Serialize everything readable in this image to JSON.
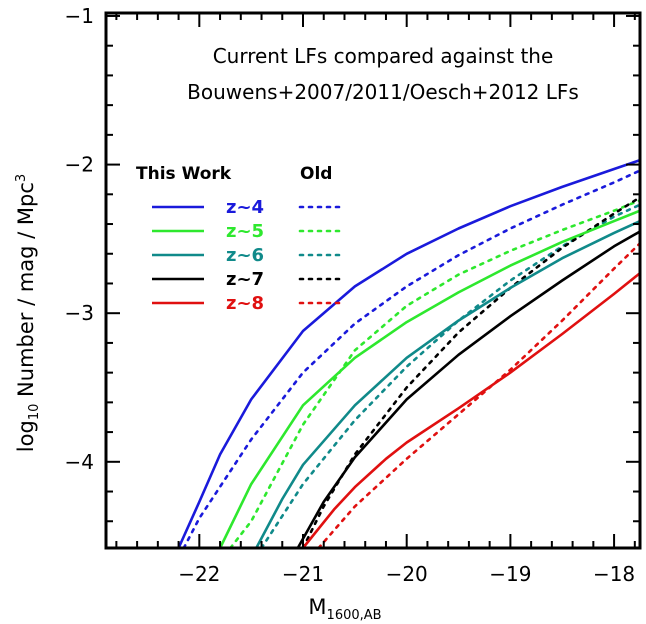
{
  "chart_data": {
    "type": "line",
    "title_lines": [
      "Current LFs compared against the",
      "Bouwens+2007/2011/Oesch+2012 LFs"
    ],
    "xlabel_main": "M",
    "xlabel_sub": "1600,AB",
    "ylabel_pre": "log",
    "ylabel_sub": "10",
    "ylabel_main": " Number / mag / Mpc",
    "ylabel_sup": "3",
    "xlim": [
      -22.9,
      -17.75
    ],
    "ylim": [
      -4.58,
      -0.98
    ],
    "x_ticks": [
      -22,
      -21,
      -20,
      -19,
      -18
    ],
    "x_tick_labels": [
      "−22",
      "−21",
      "−20",
      "−19",
      "−18"
    ],
    "y_ticks": [
      -4,
      -3,
      -2,
      -1
    ],
    "y_tick_labels": [
      "−4",
      "−3",
      "−2",
      "−1"
    ],
    "legend": {
      "header_this": "This Work",
      "header_old": "Old",
      "placement": "upper-left"
    },
    "series": [
      {
        "name": "z~4",
        "color": "#1a1adb",
        "style": "solid",
        "x": [
          -22.2,
          -22.0,
          -21.8,
          -21.5,
          -21.0,
          -20.5,
          -20.0,
          -19.5,
          -19.0,
          -18.5,
          -18.0,
          -17.75
        ],
        "y": [
          -4.58,
          -4.27,
          -3.95,
          -3.58,
          -3.12,
          -2.82,
          -2.6,
          -2.43,
          -2.28,
          -2.15,
          -2.03,
          -1.97
        ]
      },
      {
        "name": "z~5",
        "color": "#2ee82e",
        "style": "solid",
        "x": [
          -21.8,
          -21.5,
          -21.0,
          -20.5,
          -20.0,
          -19.5,
          -19.0,
          -18.5,
          -18.0,
          -17.75
        ],
        "y": [
          -4.58,
          -4.15,
          -3.62,
          -3.3,
          -3.06,
          -2.86,
          -2.68,
          -2.52,
          -2.38,
          -2.31
        ]
      },
      {
        "name": "z~6",
        "color": "#108a8a",
        "style": "solid",
        "x": [
          -21.45,
          -21.2,
          -21.0,
          -20.5,
          -20.0,
          -19.5,
          -19.0,
          -18.5,
          -18.0,
          -17.75
        ],
        "y": [
          -4.58,
          -4.25,
          -4.02,
          -3.62,
          -3.3,
          -3.05,
          -2.83,
          -2.63,
          -2.46,
          -2.38
        ]
      },
      {
        "name": "z~7",
        "color": "#000000",
        "style": "solid",
        "x": [
          -21.05,
          -20.8,
          -20.5,
          -20.0,
          -19.5,
          -19.0,
          -18.5,
          -18.0,
          -17.75
        ],
        "y": [
          -4.58,
          -4.27,
          -3.97,
          -3.58,
          -3.28,
          -3.02,
          -2.78,
          -2.55,
          -2.45
        ]
      },
      {
        "name": "z~8",
        "color": "#e01010",
        "style": "solid",
        "x": [
          -21.0,
          -20.7,
          -20.5,
          -20.2,
          -20.0,
          -19.5,
          -19.0,
          -18.5,
          -18.0,
          -17.75
        ],
        "y": [
          -4.58,
          -4.32,
          -4.17,
          -3.98,
          -3.87,
          -3.64,
          -3.4,
          -3.14,
          -2.87,
          -2.73
        ]
      }
    ],
    "series_old": [
      {
        "name": "z~4",
        "color": "#1a1adb",
        "style": "dotted",
        "x": [
          -22.15,
          -22.0,
          -21.5,
          -21.0,
          -20.5,
          -20.0,
          -19.5,
          -19.0,
          -18.5,
          -18.0,
          -17.75
        ],
        "y": [
          -4.58,
          -4.38,
          -3.85,
          -3.4,
          -3.07,
          -2.82,
          -2.61,
          -2.43,
          -2.27,
          -2.12,
          -2.04
        ]
      },
      {
        "name": "z~5",
        "color": "#2ee82e",
        "style": "dotted",
        "x": [
          -21.7,
          -21.5,
          -21.0,
          -20.5,
          -20.0,
          -19.5,
          -19.0,
          -18.5,
          -18.0,
          -17.75
        ],
        "y": [
          -4.58,
          -4.4,
          -3.75,
          -3.25,
          -2.95,
          -2.74,
          -2.58,
          -2.44,
          -2.31,
          -2.24
        ]
      },
      {
        "name": "z~6",
        "color": "#108a8a",
        "style": "dotted",
        "x": [
          -21.4,
          -21.0,
          -20.5,
          -20.0,
          -19.5,
          -19.0,
          -18.5,
          -18.0,
          -17.75
        ],
        "y": [
          -4.58,
          -4.15,
          -3.72,
          -3.36,
          -3.05,
          -2.78,
          -2.55,
          -2.35,
          -2.27
        ]
      },
      {
        "name": "z~7",
        "color": "#000000",
        "style": "dotted",
        "x": [
          -21.0,
          -20.8,
          -20.5,
          -20.0,
          -19.5,
          -19.0,
          -18.5,
          -18.0,
          -17.75
        ],
        "y": [
          -4.58,
          -4.3,
          -3.95,
          -3.5,
          -3.13,
          -2.83,
          -2.56,
          -2.33,
          -2.22
        ]
      },
      {
        "name": "z~8",
        "color": "#e01010",
        "style": "dotted",
        "x": [
          -20.85,
          -20.5,
          -20.0,
          -19.5,
          -19.0,
          -18.5,
          -18.0,
          -17.75
        ],
        "y": [
          -4.58,
          -4.3,
          -3.98,
          -3.68,
          -3.38,
          -3.05,
          -2.7,
          -2.53
        ]
      }
    ]
  }
}
